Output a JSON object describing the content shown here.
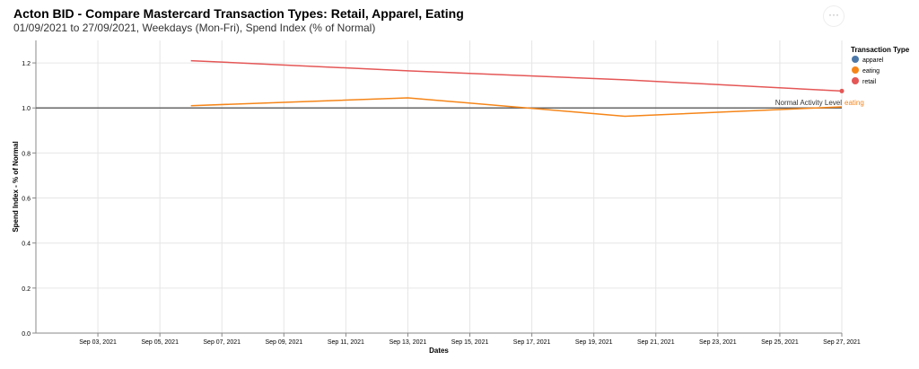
{
  "chart_data": {
    "type": "line",
    "title": "Acton BID - Compare Mastercard Transaction Types: Retail, Apparel, Eating",
    "subtitle": "01/09/2021 to 27/09/2021, Weekdays (Mon-Fri), Spend Index (% of Normal)",
    "xlabel": "Dates",
    "ylabel": "Spend Index - % of Normal",
    "xlim": [
      "2021-09-01",
      "2021-09-27"
    ],
    "ylim": [
      0,
      1.3
    ],
    "x_ticks": [
      "Sep 03, 2021",
      "Sep 05, 2021",
      "Sep 07, 2021",
      "Sep 09, 2021",
      "Sep 11, 2021",
      "Sep 13, 2021",
      "Sep 15, 2021",
      "Sep 17, 2021",
      "Sep 19, 2021",
      "Sep 21, 2021",
      "Sep 23, 2021",
      "Sep 25, 2021",
      "Sep 27, 2021"
    ],
    "y_ticks": [
      "0.0",
      "0.2",
      "0.4",
      "0.6",
      "0.8",
      "1.0",
      "1.2"
    ],
    "grid": true,
    "legend": {
      "title": "Transaction Type",
      "placement": "right",
      "items": [
        {
          "name": "apparel",
          "color": "#4c78a8"
        },
        {
          "name": "eating",
          "color": "#f58518"
        },
        {
          "name": "retail",
          "color": "#e45756"
        }
      ]
    },
    "x": [
      "2021-09-06",
      "2021-09-13",
      "2021-09-20",
      "2021-09-27"
    ],
    "series": [
      {
        "name": "retail",
        "color": "#e45756",
        "values": [
          1.21,
          1.165,
          1.125,
          1.075
        ]
      },
      {
        "name": "eating",
        "color": "#f58518",
        "values": [
          1.01,
          1.045,
          0.963,
          1.005
        ]
      }
    ],
    "end_label": "eating",
    "rule": {
      "value": 1.0,
      "label": "Normal Activity Level",
      "color": "#666666"
    }
  },
  "menu_label": "···"
}
